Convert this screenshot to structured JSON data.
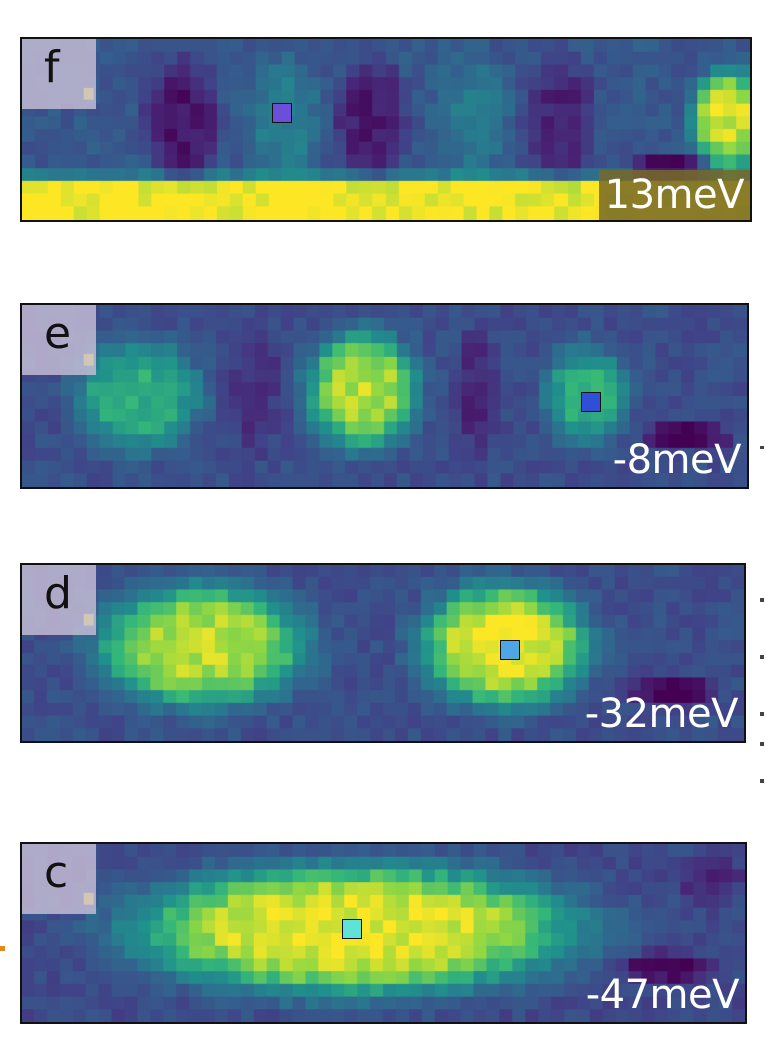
{
  "panels": [
    {
      "letter": "f",
      "energy": "13meV",
      "marker_color": "#6b4fd8",
      "energy_boxed": true
    },
    {
      "letter": "e",
      "energy": "-8meV",
      "marker_color": "#2e4fd6",
      "energy_boxed": false
    },
    {
      "letter": "d",
      "energy": "-32meV",
      "marker_color": "#4ea6e6",
      "energy_boxed": false
    },
    {
      "letter": "c",
      "energy": "-47meV",
      "marker_color": "#5fe3d6",
      "energy_boxed": false
    }
  ],
  "colormap": "viridis"
}
